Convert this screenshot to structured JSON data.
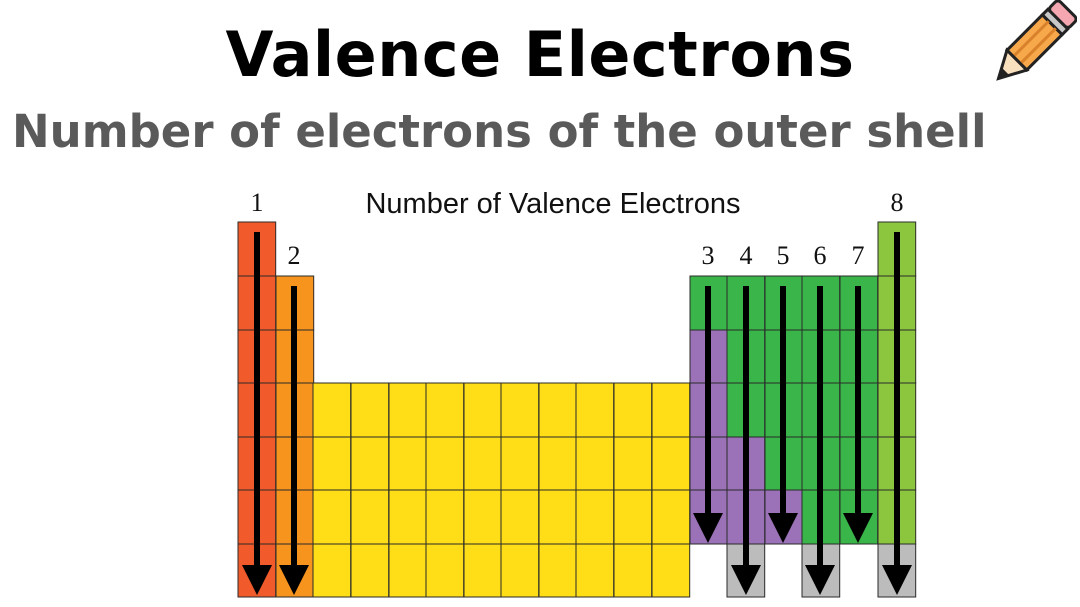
{
  "heading": {
    "title": "Valence Electrons",
    "subtitle": "Number of electrons of the outer shell"
  },
  "diagram": {
    "title": "Number of Valence Electrons",
    "group_labels": [
      "1",
      "2",
      "3",
      "4",
      "5",
      "6",
      "7",
      "8"
    ]
  },
  "icons": {
    "pencil": "pencil-icon"
  },
  "colors": {
    "group1": "#f15a2b",
    "group2": "#f7941d",
    "transition": "#ffdd17",
    "metalloid": "#9b72b8",
    "nonmetal": "#3ab54a",
    "noble": "#8cc63f",
    "gray": "#bcbcbc"
  }
}
